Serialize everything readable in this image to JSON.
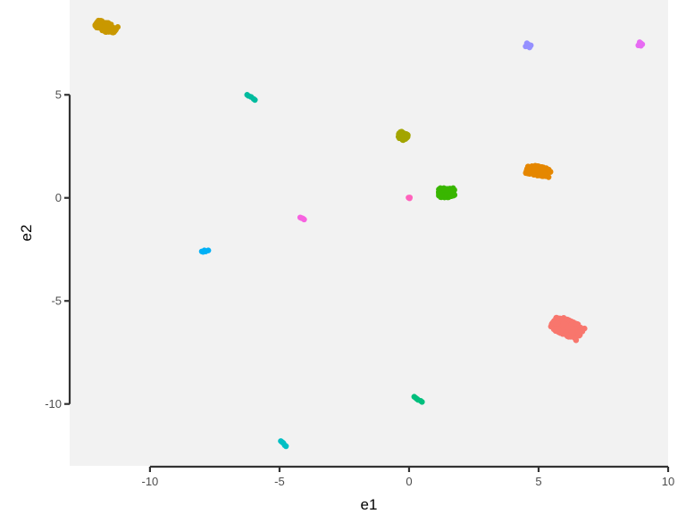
{
  "chart_data": {
    "type": "scatter",
    "title": "",
    "xlabel": "e1",
    "ylabel": "e2",
    "xlim": [
      -13.1,
      10.0
    ],
    "ylim": [
      -13.0,
      9.6
    ],
    "x_ticks": [
      -10,
      -5,
      0,
      5,
      10
    ],
    "y_ticks": [
      -10,
      -5,
      0,
      5
    ],
    "x_tick_labels": [
      "-10",
      "-5",
      "0",
      "5",
      "10"
    ],
    "y_tick_labels": [
      "-10",
      "-5",
      "0",
      "5"
    ],
    "grid": false,
    "legend": "none",
    "panel_background": "#f2f2f2",
    "clusters": [
      {
        "color": "#f8766d",
        "center": [
          6.1,
          -6.3
        ],
        "spread": [
          0.6,
          0.35
        ],
        "angle": -30,
        "n": 320,
        "shape": "blob"
      },
      {
        "color": "#e58700",
        "center": [
          5.0,
          1.3
        ],
        "spread": [
          0.45,
          0.22
        ],
        "angle": -15,
        "n": 220,
        "shape": "blob"
      },
      {
        "color": "#c99800",
        "center": [
          -11.7,
          8.3
        ],
        "spread": [
          0.4,
          0.22
        ],
        "angle": -30,
        "n": 200,
        "shape": "blob"
      },
      {
        "color": "#a3a500",
        "center": [
          -0.25,
          3.0
        ],
        "spread": [
          0.18,
          0.16
        ],
        "angle": -35,
        "n": 120,
        "shape": "blob"
      },
      {
        "color": "#39b600",
        "center": [
          1.45,
          0.25
        ],
        "spread": [
          0.3,
          0.22
        ],
        "angle": 0,
        "n": 200,
        "shape": "blob"
      },
      {
        "color": "#00bf7d",
        "points": [
          [
            0.2,
            -9.65
          ],
          [
            0.3,
            -9.75
          ],
          [
            0.35,
            -9.8
          ],
          [
            0.45,
            -9.85
          ],
          [
            0.5,
            -9.9
          ],
          [
            0.25,
            -9.7
          ]
        ]
      },
      {
        "color": "#00bfc4",
        "points": [
          [
            -4.95,
            -11.8
          ],
          [
            -4.85,
            -11.9
          ],
          [
            -4.8,
            -12.0
          ],
          [
            -4.9,
            -11.85
          ],
          [
            -4.75,
            -12.05
          ]
        ]
      },
      {
        "color": "#00b0f6",
        "points": [
          [
            -8.0,
            -2.6
          ],
          [
            -7.9,
            -2.55
          ],
          [
            -7.85,
            -2.6
          ],
          [
            -7.75,
            -2.55
          ],
          [
            -7.95,
            -2.62
          ]
        ]
      },
      {
        "color": "#00bb9e",
        "points": [
          [
            -6.25,
            5.0
          ],
          [
            -6.1,
            4.9
          ],
          [
            -6.0,
            4.8
          ],
          [
            -5.95,
            4.75
          ],
          [
            -6.2,
            4.95
          ]
        ]
      },
      {
        "color": "#9590ff",
        "points": [
          [
            4.5,
            7.35
          ],
          [
            4.6,
            7.45
          ],
          [
            4.65,
            7.3
          ],
          [
            4.55,
            7.5
          ],
          [
            4.7,
            7.4
          ]
        ]
      },
      {
        "color": "#e76bf3",
        "points": [
          [
            8.85,
            7.4
          ],
          [
            8.95,
            7.5
          ],
          [
            9.0,
            7.45
          ],
          [
            8.9,
            7.55
          ],
          [
            8.95,
            7.38
          ]
        ]
      },
      {
        "color": "#ff62bc",
        "points": [
          [
            0.0,
            0.0
          ],
          [
            0.03,
            0.02
          ],
          [
            -0.02,
            0.01
          ],
          [
            0.02,
            -0.02
          ]
        ]
      },
      {
        "color": "#f763e0",
        "points": [
          [
            -4.2,
            -0.95
          ],
          [
            -4.1,
            -1.0
          ],
          [
            -4.05,
            -1.05
          ],
          [
            -4.15,
            -0.98
          ]
        ]
      }
    ]
  }
}
